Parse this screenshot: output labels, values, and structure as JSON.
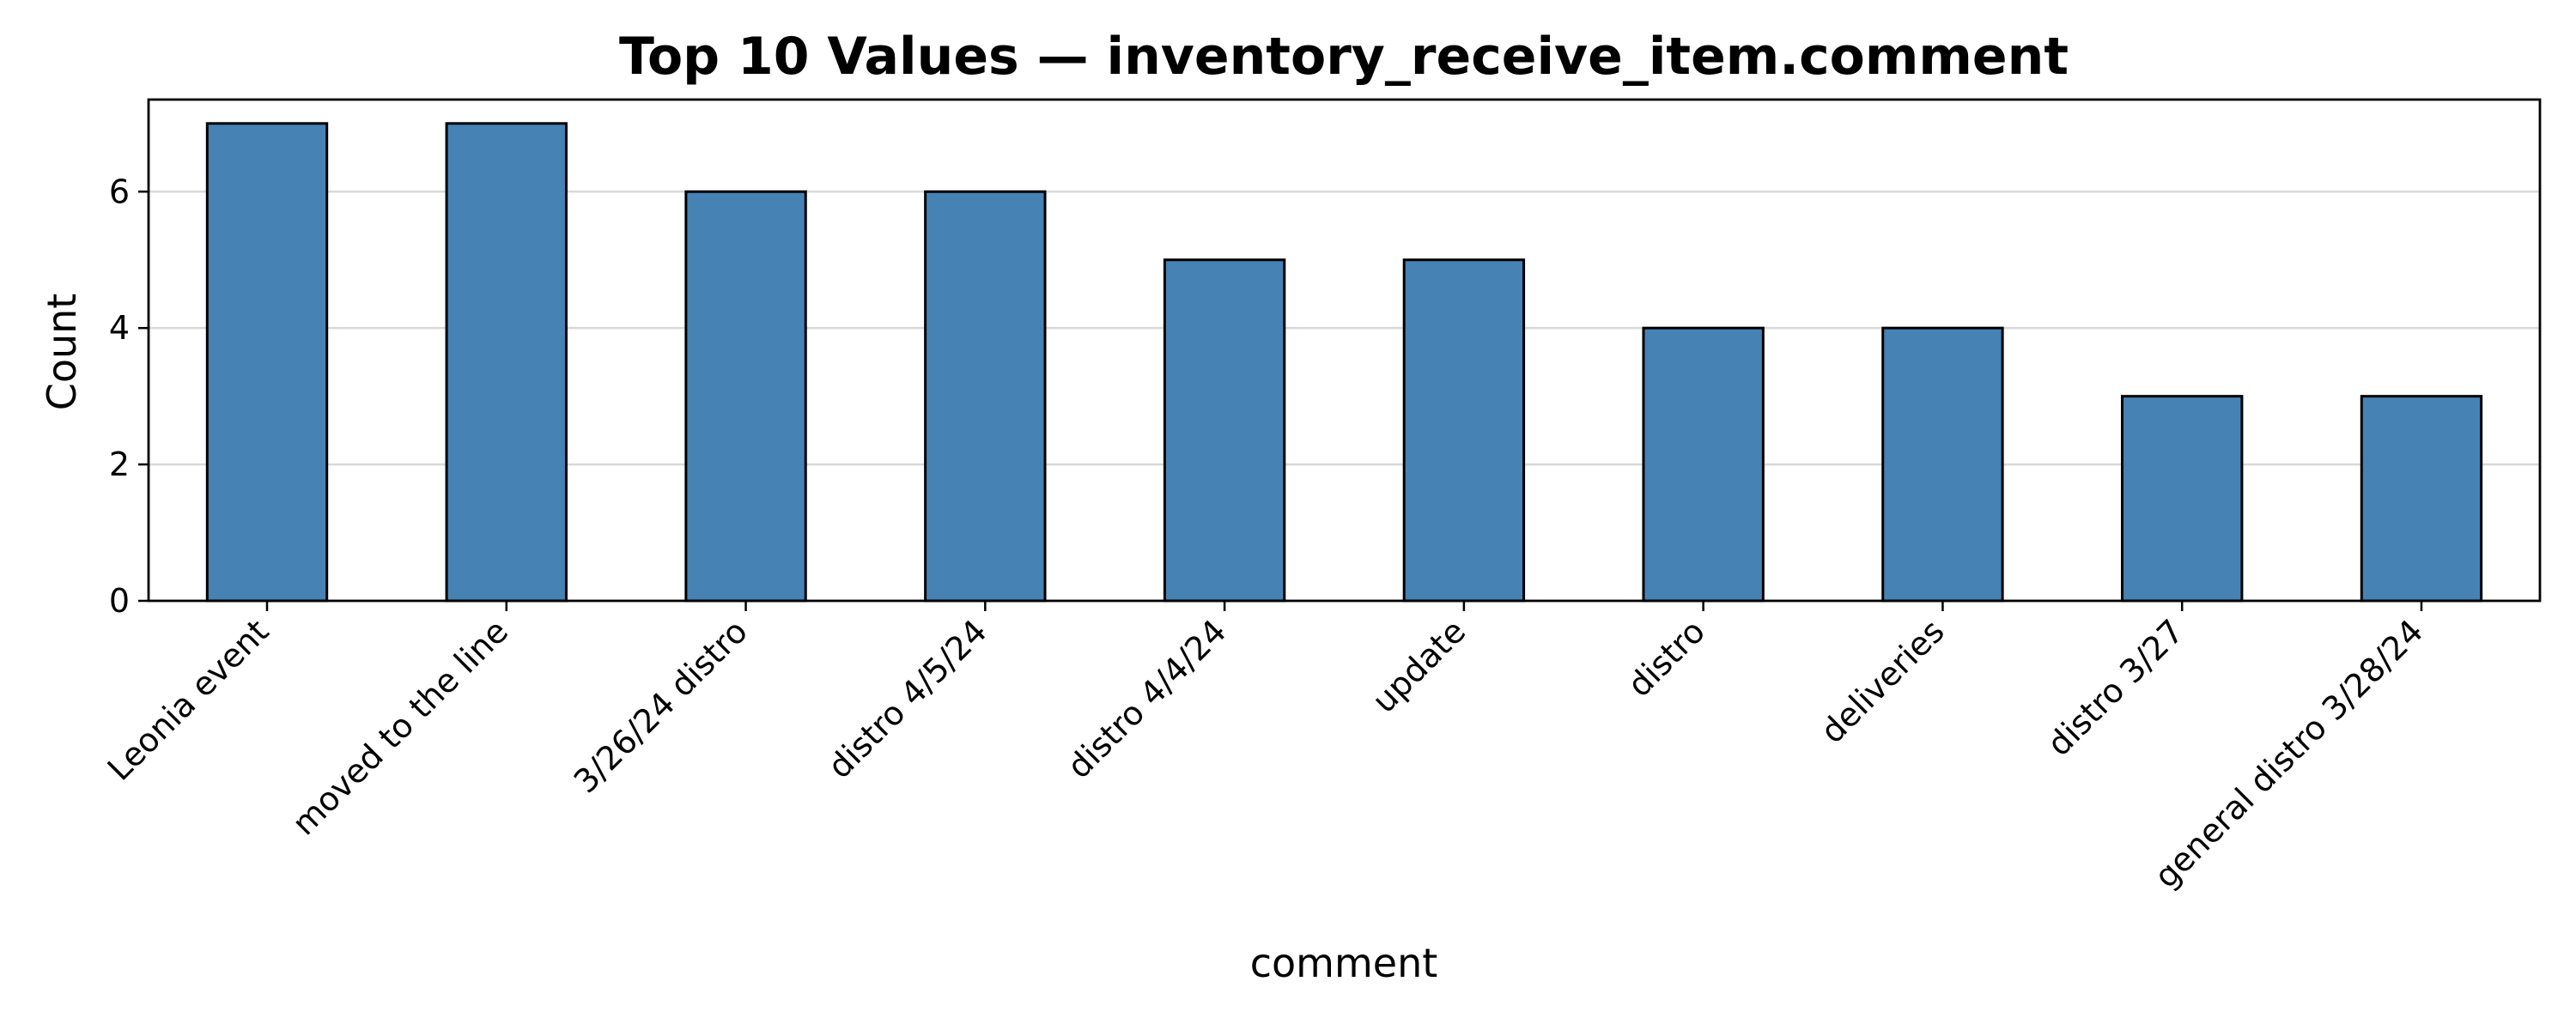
{
  "chart_data": {
    "type": "bar",
    "title": "Top 10 Values — inventory_receive_item.comment",
    "xlabel": "comment",
    "ylabel": "Count",
    "categories": [
      "Leonia event",
      "moved to the line",
      "3/26/24 distro",
      "distro 4/5/24",
      "distro 4/4/24",
      "update",
      "distro",
      "deliveries",
      "distro 3/27",
      "general distro 3/28/24"
    ],
    "values": [
      7,
      7,
      6,
      6,
      5,
      5,
      4,
      4,
      3,
      3
    ],
    "ylim": [
      0,
      7.35
    ],
    "yticks": [
      0,
      2,
      4,
      6
    ],
    "grid": "y",
    "bar_color": "#4682b4",
    "edge_color": "#000000"
  }
}
